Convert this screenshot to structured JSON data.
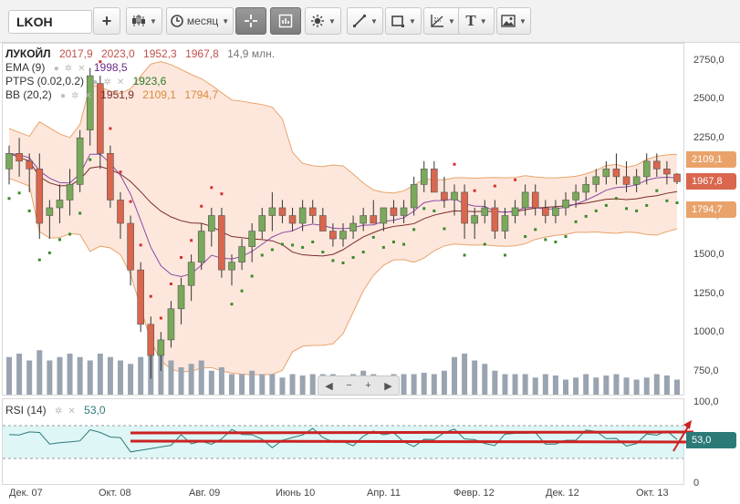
{
  "toolbar": {
    "ticker_input": "LKOH",
    "add_label": "+",
    "period_label": "месяц",
    "text_tool_label": "T"
  },
  "legend": {
    "ticker": "ЛУКОЙЛ",
    "open": "2017,9",
    "high": "2023,0",
    "low": "1952,3",
    "close": "1967,8",
    "volume": "14,9 млн.",
    "ema_label": "EMA (9)",
    "ema_value": "1998,5",
    "ptps_label": "PTPS (0.02,0.2)",
    "ptps_value": "1923,6",
    "bb_label": "BB (20,2)",
    "bb_mid": "1951,9",
    "bb_upper": "2109,1",
    "bb_lower": "1794,7",
    "rsi_label": "RSI (14)",
    "rsi_value": "53,0"
  },
  "price_axis": {
    "ticks": [
      "2750,0",
      "2500,0",
      "2250,0",
      "1750,0",
      "1500,0",
      "1250,0",
      "1000,0",
      "750,0"
    ],
    "rsi_ticks": [
      "100,0",
      "0"
    ],
    "tag_upper": "2109,1",
    "tag_close": "1967,8",
    "tag_lower": "1794,7",
    "tag_rsi": "53,0"
  },
  "time_axis": [
    "Дек. 07",
    "Окт. 08",
    "Авг. 09",
    "Июнь 10",
    "Апр. 11",
    "Февр. 12",
    "Дек. 12",
    "Окт. 13"
  ],
  "nav": {
    "left": "◀",
    "minus": "−",
    "plus": "+",
    "right": "▶"
  },
  "colors": {
    "up": "#79a95b",
    "down": "#d9664d",
    "bb_fill": "#fde7dc",
    "bb_band": "#e9a36a",
    "ema": "#8a4aa8",
    "bb_mid": "#7a2a2a",
    "sar_up": "#3a8a2a",
    "sar_down": "#d23030",
    "volume": "#9aa4b0",
    "rsi_line": "#2b7a78",
    "rsi_fill": "#dff6f6",
    "annotation": "#cc2222"
  },
  "chart_data": {
    "type": "candlestick",
    "title": "ЛУКОЙЛ",
    "interval": "месяц",
    "ylim": [
      600,
      2800
    ],
    "x_start": "Дек. 07",
    "x_end": "Окт. 13",
    "series": [
      {
        "name": "ЛУКОЙЛ",
        "ohlc": [
          [
            2050,
            2200,
            1950,
            2150
          ],
          [
            2150,
            2250,
            2000,
            2100
          ],
          [
            2100,
            2150,
            1900,
            2050
          ],
          [
            2050,
            2150,
            1600,
            1700
          ],
          [
            1750,
            1850,
            1600,
            1800
          ],
          [
            1800,
            1950,
            1700,
            1850
          ],
          [
            1850,
            2050,
            1750,
            1950
          ],
          [
            1950,
            2300,
            1900,
            2250
          ],
          [
            2300,
            2700,
            2200,
            2650
          ],
          [
            2600,
            2650,
            2050,
            2150
          ],
          [
            2150,
            2200,
            1800,
            1850
          ],
          [
            1850,
            1900,
            1600,
            1700
          ],
          [
            1700,
            1750,
            1300,
            1400
          ],
          [
            1400,
            1450,
            1000,
            1050
          ],
          [
            1050,
            1100,
            700,
            850
          ],
          [
            850,
            1000,
            750,
            950
          ],
          [
            950,
            1200,
            900,
            1150
          ],
          [
            1150,
            1350,
            1050,
            1300
          ],
          [
            1300,
            1500,
            1200,
            1450
          ],
          [
            1450,
            1700,
            1400,
            1650
          ],
          [
            1650,
            1800,
            1550,
            1750
          ],
          [
            1750,
            1800,
            1350,
            1400
          ],
          [
            1400,
            1500,
            1300,
            1450
          ],
          [
            1450,
            1600,
            1400,
            1550
          ],
          [
            1550,
            1700,
            1450,
            1650
          ],
          [
            1650,
            1800,
            1600,
            1750
          ],
          [
            1750,
            1900,
            1650,
            1800
          ],
          [
            1800,
            1850,
            1700,
            1750
          ],
          [
            1750,
            1800,
            1650,
            1700
          ],
          [
            1700,
            1850,
            1650,
            1800
          ],
          [
            1800,
            1850,
            1700,
            1750
          ],
          [
            1750,
            1800,
            1650,
            1650
          ],
          [
            1650,
            1700,
            1550,
            1600
          ],
          [
            1600,
            1700,
            1550,
            1650
          ],
          [
            1650,
            1750,
            1600,
            1700
          ],
          [
            1700,
            1800,
            1650,
            1750
          ],
          [
            1750,
            1850,
            1700,
            1700
          ],
          [
            1700,
            1800,
            1650,
            1800
          ],
          [
            1800,
            1850,
            1700,
            1750
          ],
          [
            1750,
            1850,
            1700,
            1800
          ],
          [
            1800,
            2000,
            1750,
            1950
          ],
          [
            1950,
            2100,
            1900,
            2050
          ],
          [
            2050,
            2100,
            1900,
            1900
          ],
          [
            1900,
            2000,
            1800,
            1850
          ],
          [
            1850,
            1950,
            1750,
            1900
          ],
          [
            1900,
            1950,
            1600,
            1700
          ],
          [
            1700,
            1800,
            1600,
            1750
          ],
          [
            1750,
            1850,
            1700,
            1800
          ],
          [
            1800,
            1850,
            1600,
            1650
          ],
          [
            1650,
            1800,
            1600,
            1750
          ],
          [
            1750,
            1850,
            1700,
            1800
          ],
          [
            1800,
            1950,
            1750,
            1900
          ],
          [
            1900,
            1950,
            1750,
            1800
          ],
          [
            1800,
            1850,
            1700,
            1750
          ],
          [
            1750,
            1850,
            1700,
            1800
          ],
          [
            1800,
            1900,
            1750,
            1850
          ],
          [
            1850,
            1950,
            1800,
            1900
          ],
          [
            1900,
            2000,
            1850,
            1950
          ],
          [
            1950,
            2050,
            1900,
            2000
          ],
          [
            2000,
            2100,
            1950,
            2050
          ],
          [
            2050,
            2150,
            1950,
            2000
          ],
          [
            2000,
            2100,
            1900,
            1950
          ],
          [
            1950,
            2050,
            1900,
            2000
          ],
          [
            2000,
            2150,
            1950,
            2100
          ],
          [
            2100,
            2150,
            2000,
            2050
          ],
          [
            2050,
            2100,
            1950,
            2017
          ],
          [
            2017,
            2023,
            1952,
            1968
          ]
        ]
      }
    ],
    "volume": [
      0.55,
      0.6,
      0.5,
      0.65,
      0.5,
      0.55,
      0.6,
      0.55,
      0.5,
      0.6,
      0.55,
      0.5,
      0.45,
      0.55,
      0.85,
      0.6,
      0.5,
      0.4,
      0.45,
      0.5,
      0.35,
      0.4,
      0.3,
      0.3,
      0.35,
      0.3,
      0.3,
      0.25,
      0.3,
      0.28,
      0.3,
      0.3,
      0.3,
      0.25,
      0.3,
      0.35,
      0.3,
      0.28,
      0.3,
      0.3,
      0.3,
      0.32,
      0.3,
      0.35,
      0.55,
      0.6,
      0.5,
      0.45,
      0.35,
      0.3,
      0.3,
      0.3,
      0.25,
      0.3,
      0.28,
      0.22,
      0.25,
      0.3,
      0.25,
      0.28,
      0.3,
      0.25,
      0.22,
      0.25,
      0.3,
      0.28,
      0.22
    ],
    "rsi": {
      "ylim": [
        0,
        100
      ],
      "levels": [
        70,
        30
      ],
      "last": 53.0
    }
  }
}
